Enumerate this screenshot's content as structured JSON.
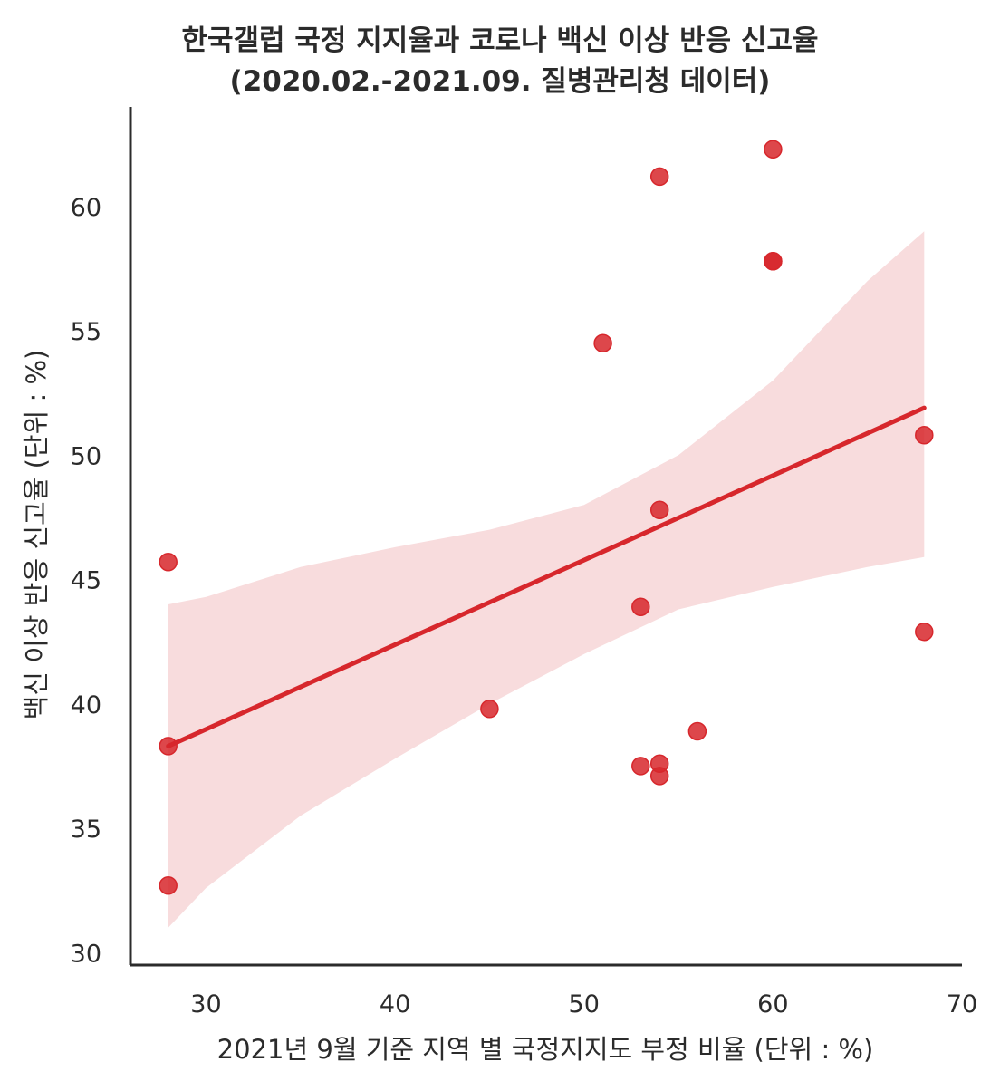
{
  "chart_data": {
    "type": "scatter",
    "title": "한국갤럽 국정 지지율과 코로나 백신 이상 반응 신고율",
    "subtitle": "(2020.02.-2021.09. 질병관리청 데이터)",
    "xlabel": "2021년 9월 기준 지역 별 국정지지도 부정 비율 (단위 : %)",
    "ylabel": "백신 이상 반응 신고율 (단위 : %)",
    "xlim": [
      26,
      70
    ],
    "ylim": [
      29.5,
      64
    ],
    "xticks": [
      "30",
      "40",
      "50",
      "60",
      "70"
    ],
    "yticks": [
      "30",
      "35",
      "40",
      "45",
      "50",
      "55",
      "60"
    ],
    "grid": false,
    "points": [
      {
        "x": 28,
        "y": 45.7
      },
      {
        "x": 28,
        "y": 38.3
      },
      {
        "x": 28,
        "y": 32.7
      },
      {
        "x": 45,
        "y": 39.8
      },
      {
        "x": 51,
        "y": 54.5
      },
      {
        "x": 53,
        "y": 43.9
      },
      {
        "x": 53,
        "y": 37.5
      },
      {
        "x": 54,
        "y": 61.2
      },
      {
        "x": 54,
        "y": 47.8
      },
      {
        "x": 54,
        "y": 37.6
      },
      {
        "x": 54,
        "y": 37.1
      },
      {
        "x": 56,
        "y": 38.9
      },
      {
        "x": 60,
        "y": 62.3
      },
      {
        "x": 60,
        "y": 57.8
      },
      {
        "x": 60,
        "y": 57.8
      },
      {
        "x": 68,
        "y": 50.8
      },
      {
        "x": 68,
        "y": 42.9
      }
    ],
    "regression_line": {
      "x": [
        28,
        68
      ],
      "y": [
        38.3,
        51.9
      ]
    },
    "confidence_band": {
      "x": [
        28,
        30,
        35,
        40,
        45,
        50,
        55,
        60,
        65,
        68
      ],
      "upper": [
        44.0,
        44.3,
        45.5,
        46.3,
        47.0,
        48.0,
        50.0,
        53.0,
        57.0,
        59.0
      ],
      "lower": [
        31.0,
        32.6,
        35.5,
        37.8,
        40.0,
        42.0,
        43.8,
        44.7,
        45.5,
        45.9
      ]
    },
    "colors": {
      "point": "#d7272c",
      "line": "#d7272c",
      "band": "#f8dcdd",
      "axis": "#2b2b2b"
    }
  }
}
